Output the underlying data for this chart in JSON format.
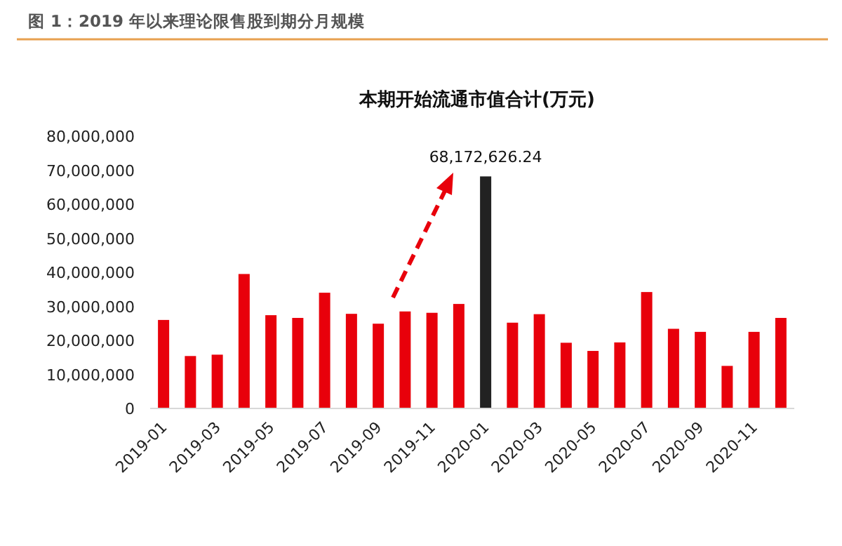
{
  "chart_data": {
    "type": "bar",
    "title": "图 1：2019 年以来理论限售股到期分月规模",
    "subtitle": "本期开始流通市值合计(万元)",
    "categories": [
      "2019-01",
      null,
      "2019-03",
      null,
      "2019-05",
      null,
      "2019-07",
      null,
      "2019-09",
      null,
      "2019-11",
      null,
      "2020-01",
      null,
      "2020-03",
      null,
      "2020-05",
      null,
      "2020-07",
      null,
      "2020-09",
      null,
      "2020-11",
      null
    ],
    "values": [
      26000000,
      15400000,
      15800000,
      39500000,
      27400000,
      26600000,
      34000000,
      27800000,
      24900000,
      28500000,
      28100000,
      30700000,
      68172626.24,
      25200000,
      27700000,
      19300000,
      16900000,
      19400000,
      34200000,
      23400000,
      22500000,
      12500000,
      22500000,
      26600000
    ],
    "colors": [
      "#e8000b",
      "#e8000b",
      "#e8000b",
      "#e8000b",
      "#e8000b",
      "#e8000b",
      "#e8000b",
      "#e8000b",
      "#e8000b",
      "#e8000b",
      "#e8000b",
      "#e8000b",
      "#222222",
      "#e8000b",
      "#e8000b",
      "#e8000b",
      "#e8000b",
      "#e8000b",
      "#e8000b",
      "#e8000b",
      "#e8000b",
      "#e8000b",
      "#e8000b",
      "#e8000b"
    ],
    "value_labels": [
      null,
      null,
      null,
      null,
      null,
      null,
      null,
      null,
      null,
      null,
      null,
      null,
      "68,172,626.24",
      null,
      null,
      null,
      null,
      null,
      null,
      null,
      null,
      null,
      null,
      null
    ],
    "ylim": [
      0,
      80000000
    ],
    "yticks": [
      0,
      {
        "value": 10000000,
        "label": "10,000,000"
      },
      {
        "value": 20000000,
        "label": "20,000,000"
      },
      {
        "value": 30000000,
        "label": "30,000,000"
      },
      {
        "value": 40000000,
        "label": "40,000,000"
      },
      {
        "value": 50000000,
        "label": "50,000,000"
      },
      {
        "value": 60000000,
        "label": "60,000,000"
      },
      {
        "value": 70000000,
        "label": "70,000,000"
      },
      {
        "value": 80000000,
        "label": "80,000,000"
      }
    ],
    "grid": false
  }
}
